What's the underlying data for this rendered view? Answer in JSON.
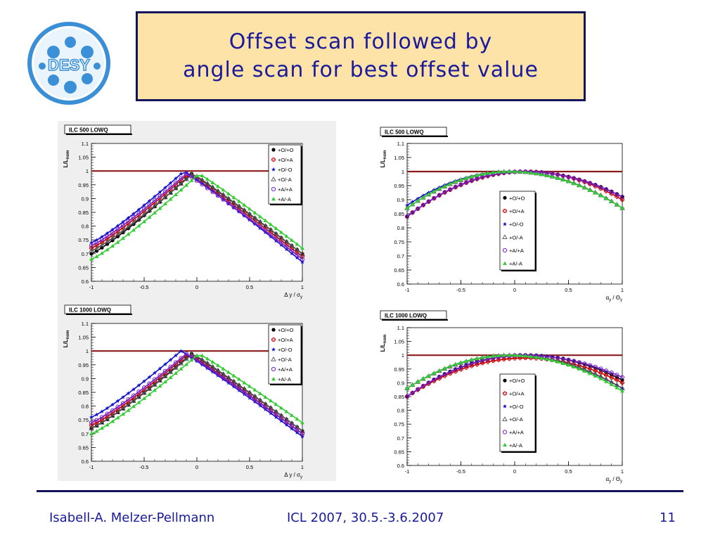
{
  "slide": {
    "logo_text": "DESY",
    "title_line1": "Offset scan followed by",
    "title_line2": "angle scan for best offset value",
    "footer_author": "Isabell-A. Melzer-Pellmann",
    "footer_conference": "ICL 2007, 30.5.-3.6.2007",
    "page_number": "11"
  },
  "colors": {
    "title_text": "#1a1a9c",
    "title_background": "#fde3a7",
    "reference_line": "#8b1a1a"
  },
  "chart_data": [
    {
      "type": "line",
      "title": "ILC 500 LOWQ",
      "ylabel": "L/L",
      "ylabel_sub": "nom",
      "xlabel": "Δ y / σ",
      "xlabel_sub": "y",
      "xlim": [
        -1,
        1
      ],
      "ylim": [
        0.6,
        1.1
      ],
      "xticks": [
        "-1",
        "-0.5",
        "0",
        "0.5",
        "1"
      ],
      "yticks": [
        "0.6",
        "0.65",
        "0.7",
        "0.75",
        "0.8",
        "0.85",
        "0.9",
        "0.95",
        "1",
        "1.05",
        "1.1"
      ],
      "reference_y": 1,
      "legend_position": "top-right",
      "series": [
        {
          "name": "+O/+O",
          "color": "#000000",
          "marker": "filled-circle",
          "left": 0.7,
          "peak_x": -0.05,
          "peak_y": 0.99,
          "right": 0.7
        },
        {
          "name": "+O/+A",
          "color": "#cc0000",
          "marker": "open-cross",
          "left": 0.72,
          "peak_x": -0.08,
          "peak_y": 0.99,
          "right": 0.69
        },
        {
          "name": "+O/-O",
          "color": "#1010cc",
          "marker": "star",
          "left": 0.74,
          "peak_x": -0.12,
          "peak_y": 1.0,
          "right": 0.67
        },
        {
          "name": "+O/-A",
          "color": "#555555",
          "marker": "open-triangle",
          "left": 0.71,
          "peak_x": -0.04,
          "peak_y": 0.99,
          "right": 0.7
        },
        {
          "name": "+A/+A",
          "color": "#7722cc",
          "marker": "open-circle",
          "left": 0.73,
          "peak_x": -0.1,
          "peak_y": 0.99,
          "right": 0.68
        },
        {
          "name": "+A/-A",
          "color": "#33cc33",
          "marker": "filled-triangle",
          "left": 0.68,
          "peak_x": 0.02,
          "peak_y": 0.99,
          "right": 0.72
        }
      ]
    },
    {
      "type": "line",
      "title": "ILC 1000 LOWQ",
      "ylabel": "L/L",
      "ylabel_sub": "nom",
      "xlabel": "Δ y / σ",
      "xlabel_sub": "y",
      "xlim": [
        -1,
        1
      ],
      "ylim": [
        0.6,
        1.1
      ],
      "xticks": [
        "-1",
        "-0.5",
        "0",
        "0.5",
        "1"
      ],
      "yticks": [
        "0.6",
        "0.65",
        "0.7",
        "0.75",
        "0.8",
        "0.85",
        "0.9",
        "0.95",
        "1",
        "1.05",
        "1.1"
      ],
      "reference_y": 1,
      "legend_position": "top-right",
      "series": [
        {
          "name": "+O/+O",
          "color": "#000000",
          "marker": "filled-circle",
          "left": 0.72,
          "peak_x": -0.05,
          "peak_y": 0.99,
          "right": 0.71
        },
        {
          "name": "+O/+A",
          "color": "#cc0000",
          "marker": "open-cross",
          "left": 0.73,
          "peak_x": -0.08,
          "peak_y": 0.99,
          "right": 0.7
        },
        {
          "name": "+O/-O",
          "color": "#1010cc",
          "marker": "star",
          "left": 0.76,
          "peak_x": -0.15,
          "peak_y": 1.0,
          "right": 0.69
        },
        {
          "name": "+O/-A",
          "color": "#555555",
          "marker": "open-triangle",
          "left": 0.72,
          "peak_x": -0.04,
          "peak_y": 0.99,
          "right": 0.71
        },
        {
          "name": "+A/+A",
          "color": "#7722cc",
          "marker": "open-circle",
          "left": 0.74,
          "peak_x": -0.1,
          "peak_y": 0.99,
          "right": 0.7
        },
        {
          "name": "+A/-A",
          "color": "#33cc33",
          "marker": "filled-triangle",
          "left": 0.7,
          "peak_x": 0.02,
          "peak_y": 0.99,
          "right": 0.74
        }
      ]
    },
    {
      "type": "line",
      "title": "ILC 500 LOWQ",
      "ylabel": "L/L",
      "ylabel_sub": "nom",
      "xlabel": "α / Θ",
      "xlabel_sub1": "y",
      "xlabel_sub2": "y",
      "xlim": [
        -1,
        1
      ],
      "ylim": [
        0.6,
        1.1
      ],
      "xticks": [
        "-1",
        "-0.5",
        "0",
        "0.5",
        "1"
      ],
      "yticks": [
        "0.6",
        "0.65",
        "0.7",
        "0.75",
        "0.8",
        "0.85",
        "0.9",
        "0.95",
        "1",
        "1.05",
        "1.1"
      ],
      "reference_y": 1,
      "legend_position": "center",
      "series": [
        {
          "name": "+O/+O",
          "color": "#000000",
          "marker": "filled-circle",
          "left": 0.84,
          "peak_x": 0.1,
          "peak_y": 1.0,
          "right": 0.91
        },
        {
          "name": "+O/+A",
          "color": "#cc0000",
          "marker": "open-cross",
          "left": 0.84,
          "peak_x": 0.1,
          "peak_y": 1.0,
          "right": 0.9
        },
        {
          "name": "+O/-O",
          "color": "#1010cc",
          "marker": "star",
          "left": 0.88,
          "peak_x": -0.05,
          "peak_y": 1.0,
          "right": 0.87
        },
        {
          "name": "+O/-A",
          "color": "#555555",
          "marker": "open-triangle",
          "left": 0.87,
          "peak_x": -0.03,
          "peak_y": 1.0,
          "right": 0.87
        },
        {
          "name": "+A/+A",
          "color": "#7722cc",
          "marker": "open-circle",
          "left": 0.84,
          "peak_x": 0.08,
          "peak_y": 1.0,
          "right": 0.91
        },
        {
          "name": "+A/-A",
          "color": "#33cc33",
          "marker": "filled-triangle",
          "left": 0.87,
          "peak_x": -0.05,
          "peak_y": 1.0,
          "right": 0.87
        }
      ]
    },
    {
      "type": "line",
      "title": "ILC 1000 LOWQ",
      "ylabel": "L/L",
      "ylabel_sub": "nom",
      "xlabel": "α / Θ",
      "xlabel_sub1": "y",
      "xlabel_sub2": "y",
      "xlim": [
        -1,
        1
      ],
      "ylim": [
        0.6,
        1.1
      ],
      "xticks": [
        "-1",
        "-0.5",
        "0",
        "0.5",
        "1"
      ],
      "yticks": [
        "0.6",
        "0.65",
        "0.7",
        "0.75",
        "0.8",
        "0.85",
        "0.9",
        "0.95",
        "1",
        "1.05",
        "1.1"
      ],
      "reference_y": 1,
      "legend_position": "center",
      "series": [
        {
          "name": "+O/+O",
          "color": "#000000",
          "marker": "filled-circle",
          "left": 0.85,
          "peak_x": 0.1,
          "peak_y": 1.0,
          "right": 0.91
        },
        {
          "name": "+O/+A",
          "color": "#cc0000",
          "marker": "open-cross",
          "left": 0.85,
          "peak_x": 0.1,
          "peak_y": 0.99,
          "right": 0.9
        },
        {
          "name": "+O/-O",
          "color": "#1010cc",
          "marker": "star",
          "left": 0.88,
          "peak_x": -0.05,
          "peak_y": 1.0,
          "right": 0.88
        },
        {
          "name": "+O/-A",
          "color": "#555555",
          "marker": "open-triangle",
          "left": 0.88,
          "peak_x": -0.03,
          "peak_y": 1.0,
          "right": 0.88
        },
        {
          "name": "+A/+A",
          "color": "#7722cc",
          "marker": "open-circle",
          "left": 0.85,
          "peak_x": 0.08,
          "peak_y": 1.0,
          "right": 0.92
        },
        {
          "name": "+A/-A",
          "color": "#33cc33",
          "marker": "filled-triangle",
          "left": 0.88,
          "peak_x": -0.05,
          "peak_y": 1.0,
          "right": 0.87
        }
      ]
    }
  ]
}
